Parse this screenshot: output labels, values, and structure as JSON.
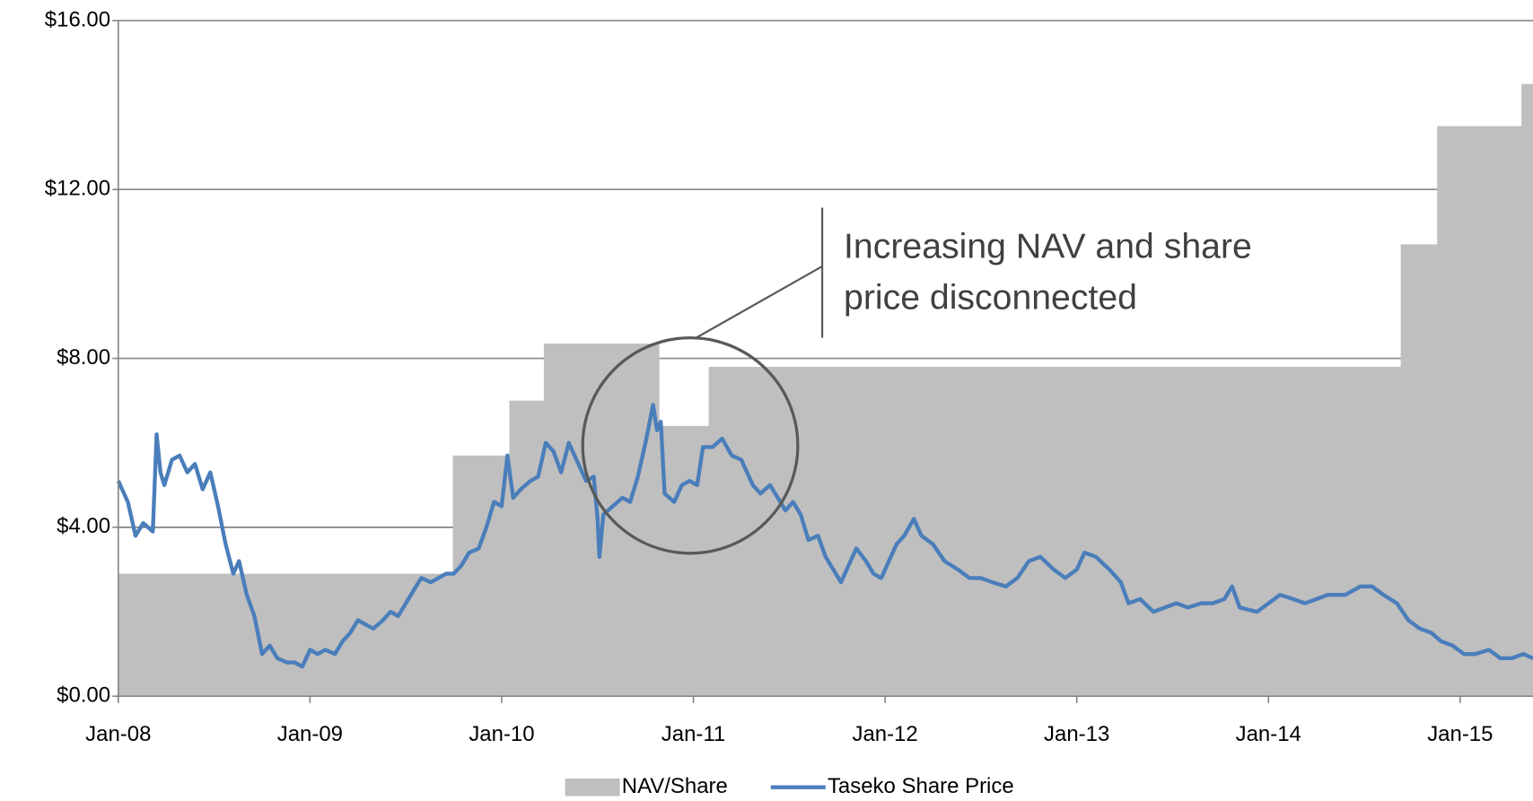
{
  "chart_data": {
    "type": "step-area-line",
    "xlim": [
      2008,
      2015.38
    ],
    "xticks": [
      {
        "value": 2008,
        "label": "Jan-08"
      },
      {
        "value": 2009,
        "label": "Jan-09"
      },
      {
        "value": 2010,
        "label": "Jan-10"
      },
      {
        "value": 2011,
        "label": "Jan-11"
      },
      {
        "value": 2012,
        "label": "Jan-12"
      },
      {
        "value": 2013,
        "label": "Jan-13"
      },
      {
        "value": 2014,
        "label": "Jan-14"
      },
      {
        "value": 2015,
        "label": "Jan-15"
      }
    ],
    "ylim": [
      0,
      16
    ],
    "yticks": [
      {
        "value": 0,
        "label": "$0.00"
      },
      {
        "value": 4,
        "label": "$4.00"
      },
      {
        "value": 8,
        "label": "$8.00"
      },
      {
        "value": 12,
        "label": "$12.00"
      },
      {
        "value": 16,
        "label": "$16.00"
      }
    ],
    "grid": true,
    "legend": "bottom",
    "annotation": [
      "Increasing NAV and share",
      "price disconnected"
    ],
    "series": [
      {
        "name": "NAV/Share",
        "kind": "step-area",
        "color": "#bfbfbf",
        "x": [
          2008,
          2009.745,
          2010.04,
          2010.22,
          2010.82,
          2011.08,
          2014.69,
          2014.88,
          2015.32
        ],
        "values": [
          2.9,
          5.7,
          7.0,
          8.35,
          6.4,
          7.8,
          10.7,
          13.5,
          14.5
        ]
      },
      {
        "name": "Taseko Share Price",
        "kind": "line",
        "color": "#4a7ebb",
        "x": [
          2008.0,
          2008.05,
          2008.09,
          2008.13,
          2008.18,
          2008.2,
          2008.22,
          2008.24,
          2008.28,
          2008.32,
          2008.36,
          2008.4,
          2008.44,
          2008.48,
          2008.52,
          2008.56,
          2008.6,
          2008.63,
          2008.67,
          2008.71,
          2008.75,
          2008.79,
          2008.83,
          2008.88,
          2008.92,
          2008.96,
          2009.0,
          2009.04,
          2009.08,
          2009.13,
          2009.17,
          2009.21,
          2009.25,
          2009.29,
          2009.33,
          2009.38,
          2009.42,
          2009.46,
          2009.5,
          2009.54,
          2009.58,
          2009.63,
          2009.67,
          2009.71,
          2009.75,
          2009.79,
          2009.83,
          2009.88,
          2009.92,
          2009.96,
          2010.0,
          2010.03,
          2010.06,
          2010.1,
          2010.15,
          2010.19,
          2010.23,
          2010.27,
          2010.31,
          2010.35,
          2010.4,
          2010.44,
          2010.48,
          2010.5,
          2010.51,
          2010.53,
          2010.58,
          2010.63,
          2010.67,
          2010.71,
          2010.75,
          2010.79,
          2010.81,
          2010.83,
          2010.85,
          2010.9,
          2010.94,
          2010.98,
          2011.02,
          2011.05,
          2011.1,
          2011.15,
          2011.2,
          2011.25,
          2011.31,
          2011.35,
          2011.4,
          2011.44,
          2011.48,
          2011.52,
          2011.56,
          2011.6,
          2011.65,
          2011.69,
          2011.73,
          2011.77,
          2011.81,
          2011.85,
          2011.9,
          2011.94,
          2011.98,
          2012.02,
          2012.06,
          2012.1,
          2012.15,
          2012.19,
          2012.25,
          2012.31,
          2012.38,
          2012.44,
          2012.5,
          2012.56,
          2012.63,
          2012.69,
          2012.75,
          2012.81,
          2012.88,
          2012.94,
          2013.0,
          2013.04,
          2013.1,
          2013.17,
          2013.23,
          2013.27,
          2013.33,
          2013.4,
          2013.46,
          2013.52,
          2013.58,
          2013.65,
          2013.71,
          2013.77,
          2013.81,
          2013.85,
          2013.94,
          2014.0,
          2014.06,
          2014.13,
          2014.19,
          2014.25,
          2014.31,
          2014.4,
          2014.48,
          2014.54,
          2014.6,
          2014.67,
          2014.73,
          2014.79,
          2014.85,
          2014.9,
          2014.96,
          2015.02,
          2015.08,
          2015.15,
          2015.21,
          2015.27,
          2015.33,
          2015.38
        ],
        "values": [
          5.1,
          4.6,
          3.8,
          4.1,
          3.9,
          6.2,
          5.3,
          5.0,
          5.6,
          5.7,
          5.3,
          5.5,
          4.9,
          5.3,
          4.5,
          3.6,
          2.9,
          3.2,
          2.4,
          1.9,
          1.0,
          1.2,
          0.9,
          0.8,
          0.8,
          0.7,
          1.1,
          1.0,
          1.1,
          1.0,
          1.3,
          1.5,
          1.8,
          1.7,
          1.6,
          1.8,
          2.0,
          1.9,
          2.2,
          2.5,
          2.8,
          2.7,
          2.8,
          2.9,
          2.9,
          3.1,
          3.4,
          3.5,
          4.0,
          4.6,
          4.5,
          5.7,
          4.7,
          4.9,
          5.1,
          5.2,
          6.0,
          5.8,
          5.3,
          6.0,
          5.5,
          5.1,
          5.2,
          4.2,
          3.3,
          4.3,
          4.5,
          4.7,
          4.6,
          5.2,
          6.0,
          6.9,
          6.3,
          6.5,
          4.8,
          4.6,
          5.0,
          5.1,
          5.0,
          5.9,
          5.9,
          6.1,
          5.7,
          5.6,
          5.0,
          4.8,
          5.0,
          4.7,
          4.4,
          4.6,
          4.3,
          3.7,
          3.8,
          3.3,
          3.0,
          2.7,
          3.1,
          3.5,
          3.2,
          2.9,
          2.8,
          3.2,
          3.6,
          3.8,
          4.2,
          3.8,
          3.6,
          3.2,
          3.0,
          2.8,
          2.8,
          2.7,
          2.6,
          2.8,
          3.2,
          3.3,
          3.0,
          2.8,
          3.0,
          3.4,
          3.3,
          3.0,
          2.7,
          2.2,
          2.3,
          2.0,
          2.1,
          2.2,
          2.1,
          2.2,
          2.2,
          2.3,
          2.6,
          2.1,
          2.0,
          2.2,
          2.4,
          2.3,
          2.2,
          2.3,
          2.4,
          2.4,
          2.6,
          2.6,
          2.4,
          2.2,
          1.8,
          1.6,
          1.5,
          1.3,
          1.2,
          1.0,
          1.0,
          1.1,
          0.9,
          0.9,
          1.0,
          0.9
        ]
      }
    ]
  }
}
